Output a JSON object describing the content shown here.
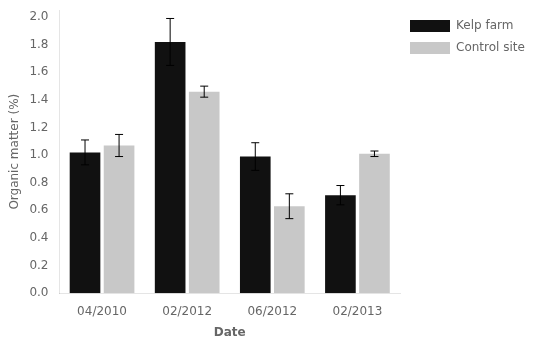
{
  "chart_data": {
    "type": "bar",
    "categories": [
      "04/2010",
      "02/2012",
      "06/2012",
      "02/2013"
    ],
    "series": [
      {
        "name": "Kelp farm",
        "color": "#111111",
        "values": [
          1.02,
          1.82,
          0.99,
          0.71
        ],
        "errors": [
          0.09,
          0.17,
          0.1,
          0.07
        ]
      },
      {
        "name": "Control site",
        "color": "#c8c8c8",
        "values": [
          1.07,
          1.46,
          0.63,
          1.01
        ],
        "errors": [
          0.08,
          0.04,
          0.09,
          0.02
        ]
      }
    ],
    "xlabel": "Date",
    "ylabel": "Organic matter (%)",
    "ylim": [
      0.0,
      2.05
    ],
    "yticks": [
      {
        "value": 0,
        "label": "0.0"
      },
      0.2,
      0.4,
      0.6,
      0.8,
      {
        "value": 1,
        "label": "1.0"
      },
      1.2,
      1.4,
      1.6,
      1.8,
      {
        "value": 2,
        "label": "2.0"
      }
    ],
    "legend": "right",
    "grid": false
  }
}
